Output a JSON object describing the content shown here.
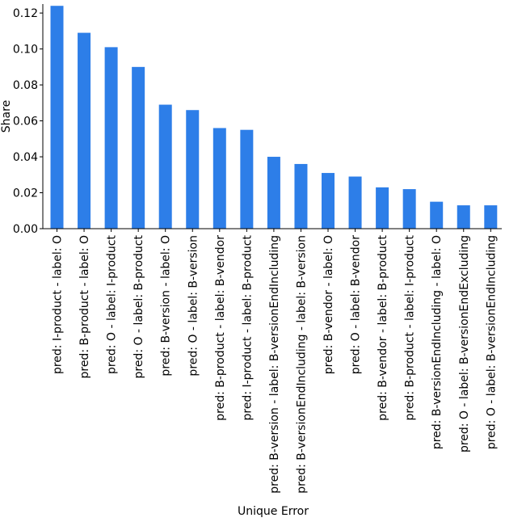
{
  "chart_data": {
    "type": "bar",
    "title": "",
    "xlabel": "Unique Error",
    "ylabel": "Share",
    "ylim": [
      0,
      0.125
    ],
    "yticks": [
      "0.00",
      "0.02",
      "0.04",
      "0.06",
      "0.08",
      "0.10",
      "0.12"
    ],
    "grid": false,
    "bar_color": "#2d7ee8",
    "categories": [
      "pred: I-product - label: O",
      "pred: B-product - label: O",
      "pred: O - label: I-product",
      "pred: O - label: B-product",
      "pred: B-version - label: O",
      "pred: O - label: B-version",
      "pred: B-product - label: B-vendor",
      "pred: I-product - label: B-product",
      "pred: B-version - label: B-versionEndIncluding",
      "pred: B-versionEndIncluding - label: B-version",
      "pred: B-vendor - label: O",
      "pred: O - label: B-vendor",
      "pred: B-vendor - label: B-product",
      "pred: B-product - label: I-product",
      "pred: B-versionEndIncluding - label: O",
      "pred: O - label: B-versionEndExcluding",
      "pred: O - label: B-versionEndIncluding"
    ],
    "values": [
      0.124,
      0.109,
      0.101,
      0.09,
      0.069,
      0.066,
      0.056,
      0.055,
      0.04,
      0.036,
      0.031,
      0.029,
      0.023,
      0.022,
      0.015,
      0.013,
      0.013
    ]
  }
}
